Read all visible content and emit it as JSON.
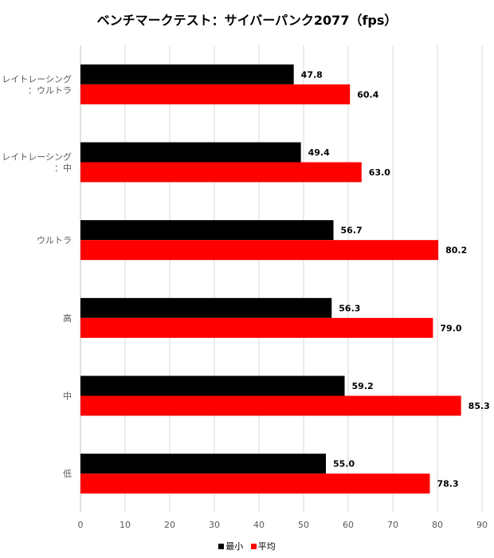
{
  "chart_data": {
    "type": "bar",
    "orientation": "horizontal",
    "title": "ベンチマークテスト：サイバーパンク2077（fps）",
    "categories": [
      [
        "レイトレーシング",
        "：ウルトラ"
      ],
      [
        "レイトレーシング",
        "：中"
      ],
      [
        "ウルトラ"
      ],
      [
        "高"
      ],
      [
        "中"
      ],
      [
        "低"
      ]
    ],
    "series": [
      {
        "name": "最小",
        "color": "#000000",
        "values": [
          47.8,
          49.4,
          56.7,
          56.3,
          59.2,
          55.0
        ],
        "labels": [
          "47.8",
          "49.4",
          "56.7",
          "56.3",
          "59.2",
          "55.0"
        ]
      },
      {
        "name": "平均",
        "color": "#ff0000",
        "values": [
          60.4,
          63.0,
          80.2,
          79.0,
          85.3,
          78.3
        ],
        "labels": [
          "60.4",
          "63.0",
          "80.2",
          "79.0",
          "85.3",
          "78.3"
        ]
      }
    ],
    "xlim": [
      0,
      90
    ],
    "ticks": [
      "0",
      "10",
      "20",
      "30",
      "40",
      "50",
      "60",
      "70",
      "80",
      "90"
    ],
    "grid": true,
    "legend_position": "bottom"
  }
}
